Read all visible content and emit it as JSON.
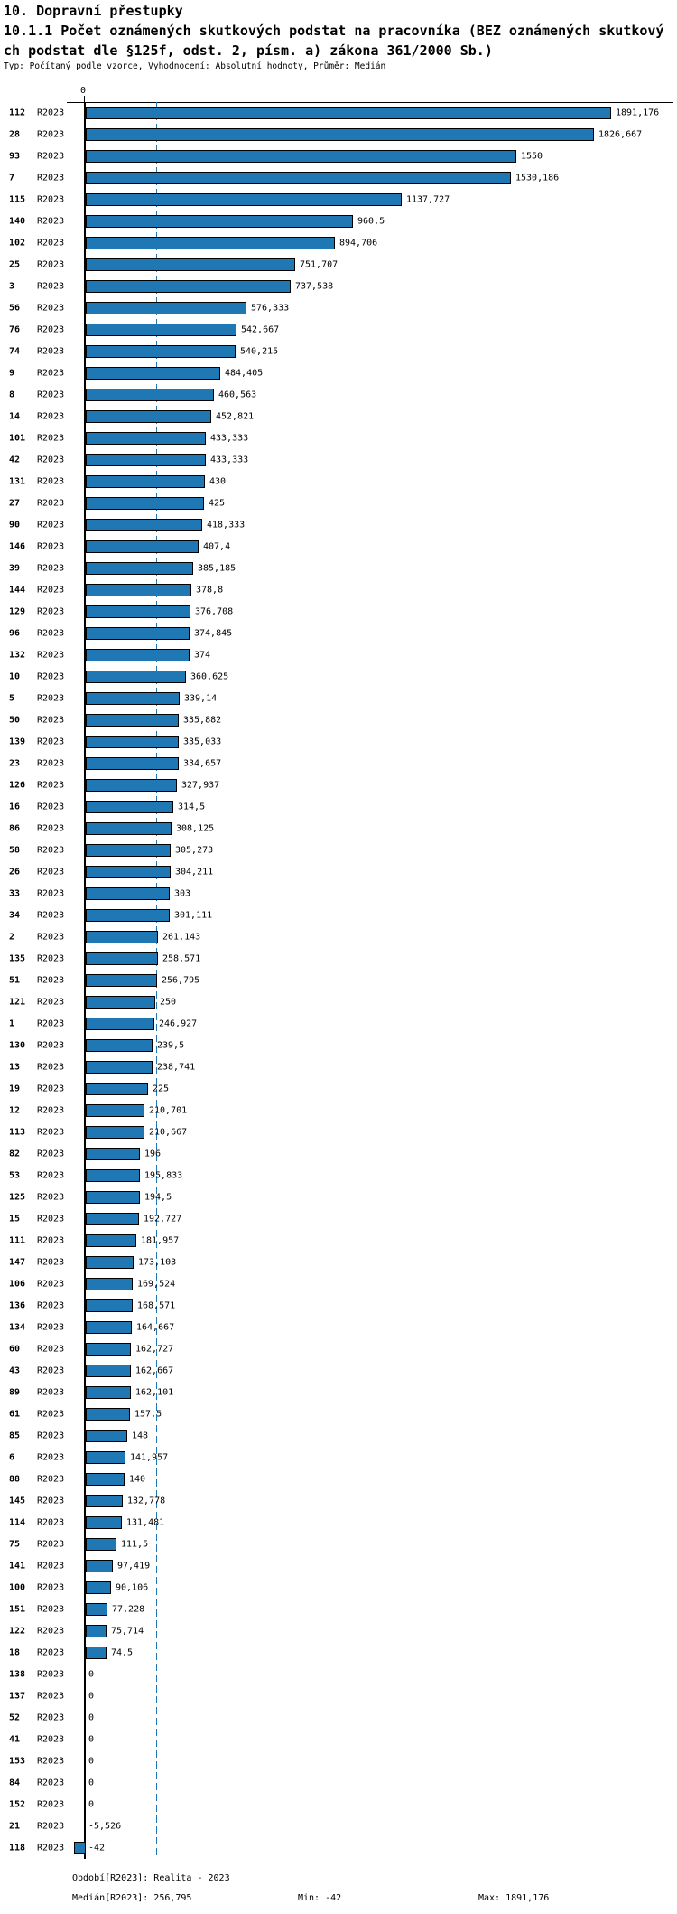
{
  "header": {
    "title": "10. Dopravní přestupky",
    "subtitle_line1": "10.1.1 Počet oznámených skutkových podstat na pracovníka (BEZ oznámených skutkový",
    "subtitle_line2": "ch podstat dle §125f, odst. 2, písm. a) zákona 361/2000 Sb.)",
    "meta": "Typ: Počítaný podle vzorce, Vyhodnocení: Absolutní hodnoty, Průměr: Medián"
  },
  "chart_data": {
    "type": "bar",
    "orientation": "horizontal",
    "series_label": "R2023",
    "zero_label": "0",
    "bar_color": "#1f77b4",
    "bar_border_color": "#000000",
    "median_line_color": "#1f77b4",
    "median_value": 256.795,
    "xlim": [
      -42,
      1891.176
    ],
    "grid": false,
    "rows": [
      {
        "id": "112",
        "value": 1891.176,
        "label": "1891,176"
      },
      {
        "id": "28",
        "value": 1826.667,
        "label": "1826,667"
      },
      {
        "id": "93",
        "value": 1550,
        "label": "1550"
      },
      {
        "id": "7",
        "value": 1530.186,
        "label": "1530,186"
      },
      {
        "id": "115",
        "value": 1137.727,
        "label": "1137,727"
      },
      {
        "id": "140",
        "value": 960.5,
        "label": "960,5"
      },
      {
        "id": "102",
        "value": 894.706,
        "label": "894,706"
      },
      {
        "id": "25",
        "value": 751.707,
        "label": "751,707"
      },
      {
        "id": "3",
        "value": 737.538,
        "label": "737,538"
      },
      {
        "id": "56",
        "value": 576.333,
        "label": "576,333"
      },
      {
        "id": "76",
        "value": 542.667,
        "label": "542,667"
      },
      {
        "id": "74",
        "value": 540.215,
        "label": "540,215"
      },
      {
        "id": "9",
        "value": 484.405,
        "label": "484,405"
      },
      {
        "id": "8",
        "value": 460.563,
        "label": "460,563"
      },
      {
        "id": "14",
        "value": 452.821,
        "label": "452,821"
      },
      {
        "id": "101",
        "value": 433.333,
        "label": "433,333"
      },
      {
        "id": "42",
        "value": 433.333,
        "label": "433,333"
      },
      {
        "id": "131",
        "value": 430,
        "label": "430"
      },
      {
        "id": "27",
        "value": 425,
        "label": "425"
      },
      {
        "id": "90",
        "value": 418.333,
        "label": "418,333"
      },
      {
        "id": "146",
        "value": 407.4,
        "label": "407,4"
      },
      {
        "id": "39",
        "value": 385.185,
        "label": "385,185"
      },
      {
        "id": "144",
        "value": 378.8,
        "label": "378,8"
      },
      {
        "id": "129",
        "value": 376.708,
        "label": "376,708"
      },
      {
        "id": "96",
        "value": 374.845,
        "label": "374,845"
      },
      {
        "id": "132",
        "value": 374,
        "label": "374"
      },
      {
        "id": "10",
        "value": 360.625,
        "label": "360,625"
      },
      {
        "id": "5",
        "value": 339.14,
        "label": "339,14"
      },
      {
        "id": "50",
        "value": 335.882,
        "label": "335,882"
      },
      {
        "id": "139",
        "value": 335.033,
        "label": "335,033"
      },
      {
        "id": "23",
        "value": 334.657,
        "label": "334,657"
      },
      {
        "id": "126",
        "value": 327.937,
        "label": "327,937"
      },
      {
        "id": "16",
        "value": 314.5,
        "label": "314,5"
      },
      {
        "id": "86",
        "value": 308.125,
        "label": "308,125"
      },
      {
        "id": "58",
        "value": 305.273,
        "label": "305,273"
      },
      {
        "id": "26",
        "value": 304.211,
        "label": "304,211"
      },
      {
        "id": "33",
        "value": 303,
        "label": "303"
      },
      {
        "id": "34",
        "value": 301.111,
        "label": "301,111"
      },
      {
        "id": "2",
        "value": 261.143,
        "label": "261,143"
      },
      {
        "id": "135",
        "value": 258.571,
        "label": "258,571"
      },
      {
        "id": "51",
        "value": 256.795,
        "label": "256,795"
      },
      {
        "id": "121",
        "value": 250,
        "label": "250"
      },
      {
        "id": "1",
        "value": 246.927,
        "label": "246,927"
      },
      {
        "id": "130",
        "value": 239.5,
        "label": "239,5"
      },
      {
        "id": "13",
        "value": 238.741,
        "label": "238,741"
      },
      {
        "id": "19",
        "value": 225,
        "label": "225"
      },
      {
        "id": "12",
        "value": 210.701,
        "label": "210,701"
      },
      {
        "id": "113",
        "value": 210.667,
        "label": "210,667"
      },
      {
        "id": "82",
        "value": 196,
        "label": "196"
      },
      {
        "id": "53",
        "value": 195.833,
        "label": "195,833"
      },
      {
        "id": "125",
        "value": 194.5,
        "label": "194,5"
      },
      {
        "id": "15",
        "value": 192.727,
        "label": "192,727"
      },
      {
        "id": "111",
        "value": 181.957,
        "label": "181,957"
      },
      {
        "id": "147",
        "value": 173.103,
        "label": "173,103"
      },
      {
        "id": "106",
        "value": 169.524,
        "label": "169,524"
      },
      {
        "id": "136",
        "value": 168.571,
        "label": "168,571"
      },
      {
        "id": "134",
        "value": 164.667,
        "label": "164,667"
      },
      {
        "id": "60",
        "value": 162.727,
        "label": "162,727"
      },
      {
        "id": "43",
        "value": 162.667,
        "label": "162,667"
      },
      {
        "id": "89",
        "value": 162.101,
        "label": "162,101"
      },
      {
        "id": "61",
        "value": 157.5,
        "label": "157,5"
      },
      {
        "id": "85",
        "value": 148,
        "label": "148"
      },
      {
        "id": "6",
        "value": 141.957,
        "label": "141,957"
      },
      {
        "id": "88",
        "value": 140,
        "label": "140"
      },
      {
        "id": "145",
        "value": 132.778,
        "label": "132,778"
      },
      {
        "id": "114",
        "value": 131.481,
        "label": "131,481"
      },
      {
        "id": "75",
        "value": 111.5,
        "label": "111,5"
      },
      {
        "id": "141",
        "value": 97.419,
        "label": "97,419"
      },
      {
        "id": "100",
        "value": 90.106,
        "label": "90,106"
      },
      {
        "id": "151",
        "value": 77.228,
        "label": "77,228"
      },
      {
        "id": "122",
        "value": 75.714,
        "label": "75,714"
      },
      {
        "id": "18",
        "value": 74.5,
        "label": "74,5"
      },
      {
        "id": "138",
        "value": 0,
        "label": "0"
      },
      {
        "id": "137",
        "value": 0,
        "label": "0"
      },
      {
        "id": "52",
        "value": 0,
        "label": "0"
      },
      {
        "id": "41",
        "value": 0,
        "label": "0"
      },
      {
        "id": "153",
        "value": 0,
        "label": "0"
      },
      {
        "id": "84",
        "value": 0,
        "label": "0"
      },
      {
        "id": "152",
        "value": 0,
        "label": "0"
      },
      {
        "id": "21",
        "value": -5.526,
        "label": "-5,526"
      },
      {
        "id": "118",
        "value": -42,
        "label": "-42"
      }
    ]
  },
  "footer": {
    "period": "Období[R2023]: Realita - 2023",
    "median": "Medián[R2023]: 256,795",
    "min": "Min: -42",
    "max": "Max: 1891,176"
  }
}
